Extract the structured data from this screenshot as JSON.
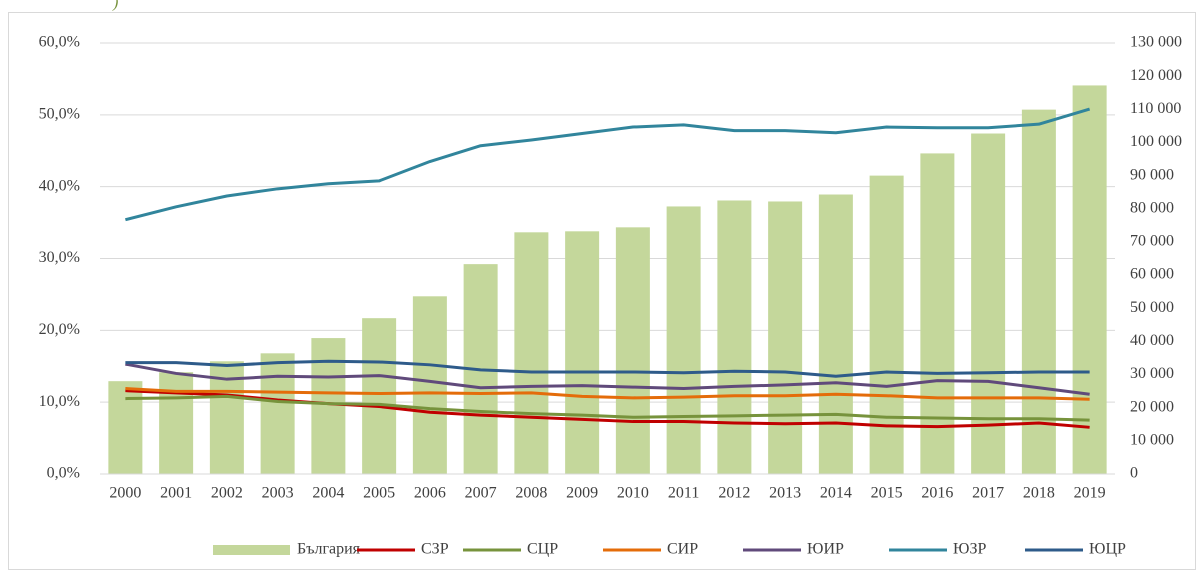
{
  "chart_data": {
    "type": "combo",
    "annotation": ")",
    "categories": [
      "2000",
      "2001",
      "2002",
      "2003",
      "2004",
      "2005",
      "2006",
      "2007",
      "2008",
      "2009",
      "2010",
      "2011",
      "2012",
      "2013",
      "2014",
      "2015",
      "2016",
      "2017",
      "2018",
      "2019"
    ],
    "ylim": [
      0,
      60
    ],
    "yticks": [
      {
        "value": 0,
        "label": "0,0%"
      },
      {
        "value": 10,
        "label": "10,0%"
      },
      {
        "value": 20,
        "label": "20,0%"
      },
      {
        "value": 30,
        "label": "30,0%"
      },
      {
        "value": 40,
        "label": "40,0%"
      },
      {
        "value": 50,
        "label": "50,0%"
      },
      {
        "value": 60,
        "label": "60,0%"
      }
    ],
    "y2lim": [
      0,
      130000
    ],
    "y2ticks": [
      0,
      {
        "value": 10000,
        "label": "10 000"
      },
      {
        "value": 20000,
        "label": "20 000"
      },
      {
        "value": 30000,
        "label": "30 000"
      },
      {
        "value": 40000,
        "label": "40 000"
      },
      {
        "value": 50000,
        "label": "50 000"
      },
      {
        "value": 60000,
        "label": "60 000"
      },
      {
        "value": 70000,
        "label": "70 000"
      },
      {
        "value": 80000,
        "label": "80 000"
      },
      {
        "value": 90000,
        "label": "90 000"
      },
      {
        "value": 100000,
        "label": "100 000"
      },
      {
        "value": 110000,
        "label": "110 000"
      },
      {
        "value": 120000,
        "label": "120 000"
      },
      {
        "value": 130000,
        "label": "130 000"
      }
    ],
    "grid": true,
    "legend": "bottom",
    "series": [
      {
        "name": "България",
        "type": "bar",
        "axis": "y2",
        "color": "#c4d79b",
        "values": [
          28000,
          30700,
          34000,
          36400,
          41000,
          47000,
          53600,
          63300,
          72900,
          73200,
          74400,
          80700,
          82500,
          82200,
          84300,
          90000,
          96700,
          102700,
          109900,
          117200
        ]
      },
      {
        "name": "СЗР",
        "type": "line",
        "color": "#c00000",
        "values": [
          11.6,
          11.3,
          11.0,
          10.3,
          9.8,
          9.4,
          8.6,
          8.2,
          7.9,
          7.6,
          7.3,
          7.3,
          7.1,
          7.0,
          7.1,
          6.7,
          6.6,
          6.8,
          7.1,
          6.5
        ]
      },
      {
        "name": "СЦР",
        "type": "line",
        "color": "#77933c",
        "values": [
          10.5,
          10.6,
          10.8,
          10.1,
          9.8,
          9.7,
          9.1,
          8.7,
          8.4,
          8.2,
          7.9,
          8.0,
          8.1,
          8.2,
          8.3,
          7.9,
          7.8,
          7.7,
          7.7,
          7.5
        ]
      },
      {
        "name": "СИР",
        "type": "line",
        "color": "#e46c0a",
        "values": [
          11.9,
          11.5,
          11.5,
          11.4,
          11.3,
          11.2,
          11.3,
          11.2,
          11.3,
          10.8,
          10.6,
          10.7,
          10.9,
          10.9,
          11.1,
          10.9,
          10.6,
          10.6,
          10.6,
          10.4
        ]
      },
      {
        "name": "ЮИР",
        "type": "line",
        "color": "#604a7b",
        "values": [
          15.3,
          14.0,
          13.2,
          13.6,
          13.5,
          13.7,
          12.9,
          12.0,
          12.2,
          12.3,
          12.1,
          11.9,
          12.2,
          12.4,
          12.7,
          12.2,
          13.0,
          12.9,
          12.0,
          11.1
        ]
      },
      {
        "name": "ЮЗР",
        "type": "line",
        "color": "#31859c",
        "values": [
          35.4,
          37.2,
          38.7,
          39.7,
          40.4,
          40.8,
          43.5,
          45.7,
          46.5,
          47.4,
          48.3,
          48.6,
          47.8,
          47.8,
          47.5,
          48.3,
          48.2,
          48.2,
          48.7,
          50.8
        ]
      },
      {
        "name": "ЮЦР",
        "type": "line",
        "color": "#2e5b8a",
        "values": [
          15.5,
          15.5,
          15.1,
          15.5,
          15.7,
          15.6,
          15.2,
          14.5,
          14.2,
          14.2,
          14.2,
          14.1,
          14.3,
          14.2,
          13.6,
          14.2,
          14.0,
          14.1,
          14.2,
          14.2
        ]
      }
    ]
  }
}
